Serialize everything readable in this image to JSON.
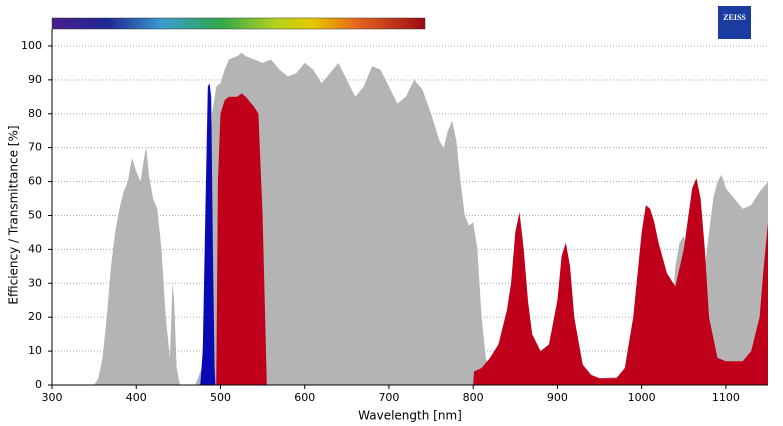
{
  "chart_data": {
    "type": "area",
    "logo": "ZEISS",
    "x_label": "Wavelength [nm]",
    "y_label": "Efficiency / Transmittance [%]",
    "xlim": [
      300,
      1150
    ],
    "ylim": [
      0,
      105
    ],
    "xticks": [
      300,
      400,
      500,
      600,
      700,
      800,
      900,
      1000,
      1100
    ],
    "yticks": [
      0,
      10,
      20,
      30,
      40,
      50,
      60,
      70,
      80,
      90,
      100
    ],
    "grid": true,
    "series": [
      {
        "color": "#b4b4b4",
        "x": [
          350,
          355,
          360,
          365,
          370,
          375,
          380,
          385,
          390,
          395,
          400,
          405,
          410,
          412,
          415,
          420,
          425,
          430,
          435,
          440,
          443,
          445,
          448,
          452,
          470,
          478,
          485,
          490,
          495,
          500,
          505,
          510,
          520,
          525,
          530,
          540,
          550,
          560,
          570,
          580,
          590,
          600,
          610,
          620,
          630,
          640,
          650,
          660,
          670,
          680,
          690,
          700,
          710,
          720,
          730,
          740,
          750,
          760,
          765,
          770,
          775,
          780,
          785,
          790,
          795,
          800,
          805,
          810,
          815,
          820,
          830,
          840,
          860,
          900,
          950,
          1000,
          1030,
          1035,
          1040,
          1045,
          1050,
          1055,
          1070,
          1075,
          1080,
          1085,
          1090,
          1095,
          1100,
          1110,
          1120,
          1130,
          1140,
          1150
        ],
        "values": [
          0,
          2,
          8,
          20,
          35,
          45,
          52,
          57,
          60,
          67,
          63,
          60,
          68,
          70,
          62,
          55,
          52,
          40,
          20,
          8,
          30,
          25,
          5,
          0,
          0,
          5,
          50,
          80,
          88,
          89,
          93,
          96,
          97,
          98,
          97,
          96,
          95,
          96,
          93,
          91,
          92,
          95,
          93,
          89,
          92,
          95,
          90,
          85,
          88,
          94,
          93,
          88,
          83,
          85,
          90,
          87,
          80,
          72,
          70,
          75,
          78,
          72,
          60,
          50,
          47,
          48,
          40,
          20,
          8,
          4,
          3,
          2,
          2,
          2,
          2,
          3,
          5,
          15,
          35,
          42,
          44,
          38,
          40,
          35,
          45,
          55,
          60,
          62,
          58,
          55,
          52,
          53,
          57,
          60
        ]
      },
      {
        "color": "#c0001a",
        "x": [
          495,
          497,
          500,
          505,
          510,
          520,
          525,
          530,
          540,
          545,
          550,
          553,
          555,
          700,
          800,
          801,
          810,
          820,
          830,
          840,
          845,
          850,
          855,
          860,
          865,
          870,
          880,
          890,
          900,
          905,
          910,
          915,
          920,
          930,
          940,
          950,
          970,
          980,
          990,
          1000,
          1005,
          1010,
          1015,
          1020,
          1030,
          1040,
          1050,
          1060,
          1065,
          1070,
          1075,
          1080,
          1090,
          1100,
          1120,
          1130,
          1140,
          1145,
          1150
        ],
        "values": [
          0,
          60,
          80,
          84,
          85,
          85,
          86,
          85,
          82,
          80,
          50,
          20,
          0,
          null,
          0,
          4,
          5,
          8,
          12,
          22,
          30,
          45,
          51,
          40,
          25,
          15,
          10,
          12,
          25,
          38,
          42,
          35,
          20,
          6,
          3,
          2,
          2,
          5,
          20,
          45,
          53,
          52,
          48,
          42,
          33,
          29,
          40,
          58,
          61,
          55,
          40,
          20,
          8,
          7,
          7,
          10,
          20,
          35,
          48
        ]
      },
      {
        "color": "#0a0ab4",
        "x": [
          476,
          479,
          482,
          485,
          487,
          489,
          491,
          493,
          494
        ],
        "values": [
          0,
          10,
          50,
          88,
          89,
          85,
          40,
          5,
          0
        ]
      }
    ]
  }
}
